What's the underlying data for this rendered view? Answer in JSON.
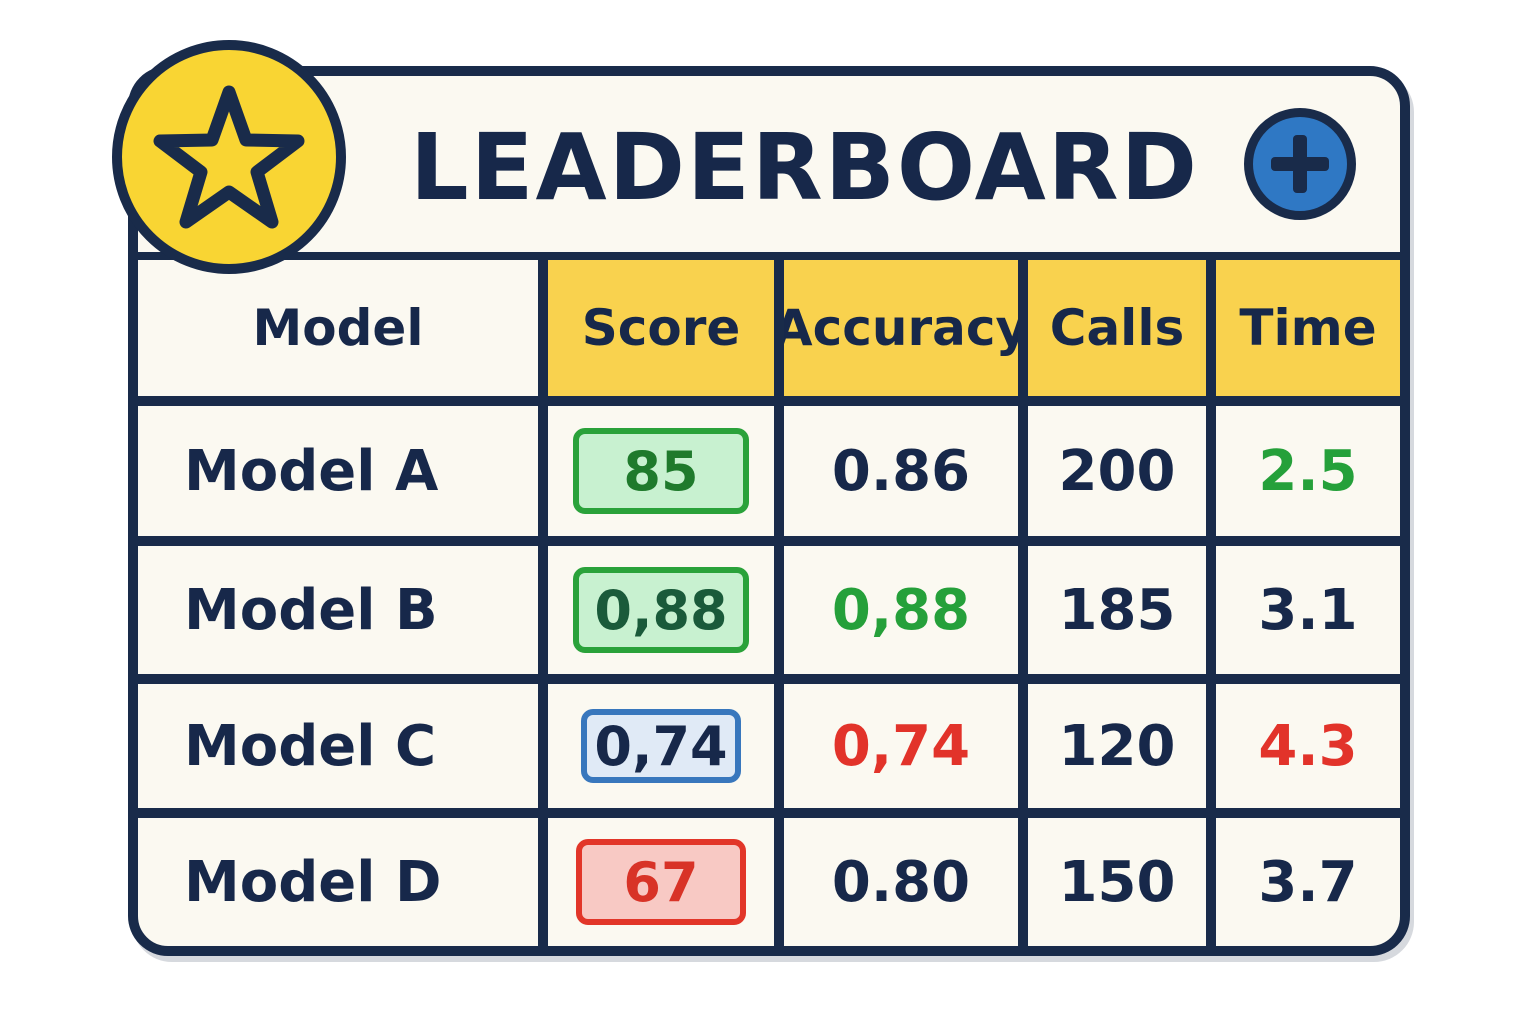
{
  "header": {
    "title": "LEADERBOARD",
    "star_icon": "star-icon",
    "add_icon": "plus-icon"
  },
  "colors": {
    "border": "#192b4a",
    "header_fill": "#f9d24e",
    "star_badge": "#f9d533",
    "add_button": "#2f78c4",
    "good": "#25a03a",
    "neutral": "#3877bd",
    "bad": "#e2332a"
  },
  "table": {
    "columns": [
      "Model",
      "Score",
      "Accuracy",
      "Calls",
      "Time"
    ],
    "rows": [
      {
        "model": "Model A",
        "score": "85",
        "score_style": "green",
        "accuracy": "0.86",
        "accuracy_style": "normal",
        "calls": "200",
        "time": "2.5",
        "time_style": "green"
      },
      {
        "model": "Model B",
        "score": "0,88",
        "score_style": "green",
        "accuracy": "0,88",
        "accuracy_style": "green",
        "calls": "185",
        "time": "3.1",
        "time_style": "normal"
      },
      {
        "model": "Model C",
        "score": "0,74",
        "score_style": "blue",
        "accuracy": "0,74",
        "accuracy_style": "red",
        "calls": "120",
        "time": "4.3",
        "time_style": "red"
      },
      {
        "model": "Model D",
        "score": "67",
        "score_style": "red",
        "accuracy": "0.80",
        "accuracy_style": "normal",
        "calls": "150",
        "time": "3.7",
        "time_style": "normal"
      }
    ]
  }
}
